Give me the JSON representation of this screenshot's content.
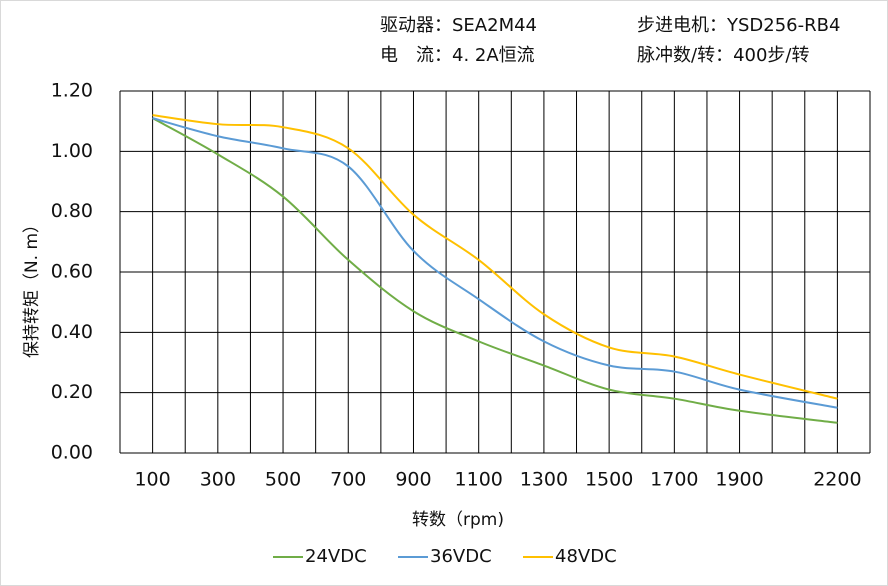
{
  "chart_data": {
    "type": "line",
    "info": [
      "驱动器：SEA2M44",
      "步进电机：YSD256-RB4",
      "电　流：4. 2A恒流",
      "脉冲数/转：400步/转"
    ],
    "x_label": "转数（rpm)",
    "y_label": "保持转矩（N. m）",
    "x": [
      100,
      300,
      500,
      700,
      900,
      1100,
      1300,
      1500,
      1700,
      1900,
      2200
    ],
    "series": [
      {
        "name": "24VDC",
        "color": "#70ad47",
        "values": [
          1.11,
          0.99,
          0.85,
          0.64,
          0.47,
          0.37,
          0.29,
          0.21,
          0.18,
          0.14,
          0.1
        ]
      },
      {
        "name": "36VDC",
        "color": "#5b9bd5",
        "values": [
          1.11,
          1.05,
          1.01,
          0.95,
          0.67,
          0.51,
          0.37,
          0.29,
          0.27,
          0.21,
          0.15
        ]
      },
      {
        "name": "48VDC",
        "color": "#ffc000",
        "values": [
          1.12,
          1.09,
          1.08,
          1.01,
          0.79,
          0.64,
          0.46,
          0.35,
          0.32,
          0.26,
          0.18
        ]
      }
    ],
    "xlim": [
      0,
      2300
    ],
    "xticks": [
      100,
      300,
      500,
      700,
      900,
      1100,
      1300,
      1500,
      1700,
      1900,
      2200
    ],
    "x_grid": [
      0,
      100,
      200,
      300,
      400,
      500,
      600,
      700,
      800,
      900,
      1000,
      1100,
      1200,
      1300,
      1400,
      1500,
      1600,
      1700,
      1800,
      1900,
      2000,
      2100,
      2200,
      2300
    ],
    "ylim": [
      0,
      1.2
    ],
    "yticks": [
      {
        "value": 0,
        "label": "0.00"
      },
      {
        "value": 0.2,
        "label": "0.20"
      },
      {
        "value": 0.4,
        "label": "0.40"
      },
      {
        "value": 0.6,
        "label": "0.60"
      },
      {
        "value": 0.8,
        "label": "0.80"
      },
      {
        "value": 1,
        "label": "1.00"
      },
      {
        "value": 1.2,
        "label": "1.20"
      }
    ],
    "grid": true,
    "legend": "bottom"
  }
}
